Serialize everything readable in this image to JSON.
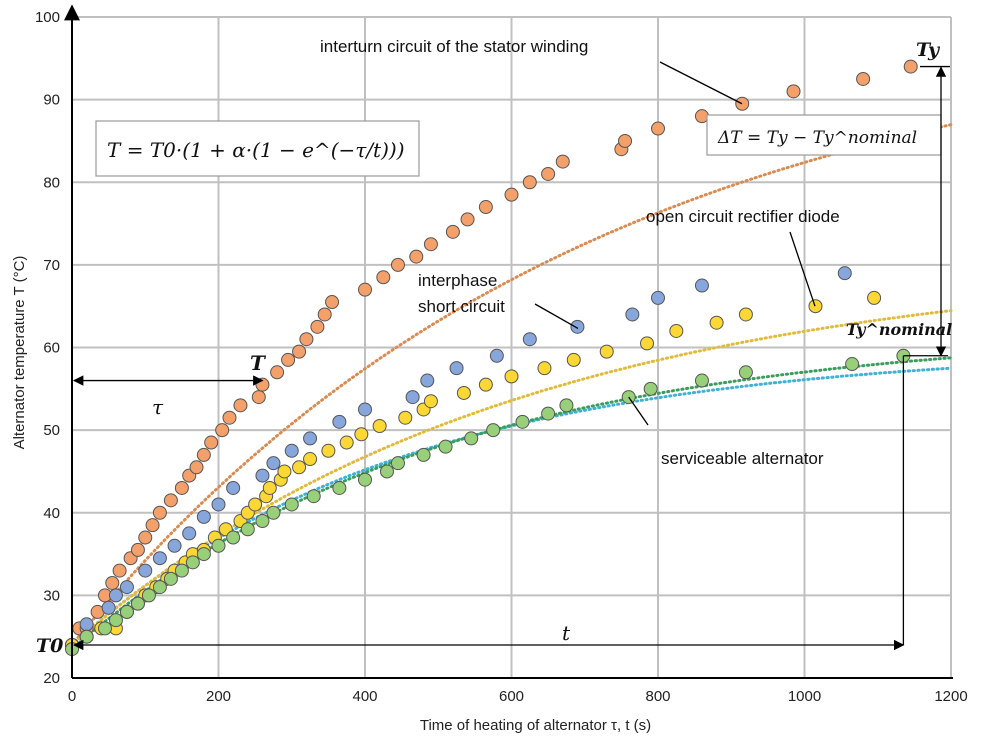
{
  "chart_data": {
    "type": "scatter",
    "title": "",
    "xlabel": "Time of heating of alternator τ, t (s)",
    "ylabel": "Alternator temperature T (°C)",
    "xlim": [
      0,
      1200
    ],
    "ylim": [
      20,
      100
    ],
    "x_ticks": [
      "0",
      "200",
      "400",
      "600",
      "800",
      "1000",
      "1200"
    ],
    "y_ticks": [
      "20",
      "30",
      "40",
      "50",
      "60",
      "70",
      "80",
      "90",
      "100"
    ],
    "grid": true,
    "legend": "none",
    "colors": {
      "orange": "#f4a06b",
      "blue": "#87a6dc",
      "yellow": "#fdd835",
      "green": "#98d07a",
      "orange_line": "#d98b52",
      "blue_line": "#3fb0d8",
      "yellow_line": "#e0bb3a",
      "green_line": "#3a9d5d",
      "grid": "#c0c0c0"
    },
    "series": [
      {
        "color_key": "orange",
        "points": [
          [
            0,
            24
          ],
          [
            10,
            26
          ],
          [
            20,
            26
          ],
          [
            35,
            28
          ],
          [
            45,
            30
          ],
          [
            55,
            31.5
          ],
          [
            65,
            33
          ],
          [
            80,
            34.5
          ],
          [
            90,
            35.5
          ],
          [
            100,
            37
          ],
          [
            110,
            38.5
          ],
          [
            120,
            40
          ],
          [
            135,
            41.5
          ],
          [
            150,
            43
          ],
          [
            160,
            44.5
          ],
          [
            170,
            45.5
          ],
          [
            180,
            47
          ],
          [
            190,
            48.5
          ],
          [
            205,
            50
          ],
          [
            215,
            51.5
          ],
          [
            230,
            53
          ],
          [
            255,
            54
          ],
          [
            260,
            55.5
          ],
          [
            280,
            57
          ],
          [
            295,
            58.5
          ],
          [
            310,
            59.5
          ],
          [
            320,
            61
          ],
          [
            335,
            62.5
          ],
          [
            345,
            64
          ],
          [
            355,
            65.5
          ],
          [
            400,
            67
          ],
          [
            425,
            68.5
          ],
          [
            445,
            70
          ],
          [
            470,
            71
          ],
          [
            490,
            72.5
          ],
          [
            520,
            74
          ],
          [
            540,
            75.5
          ],
          [
            565,
            77
          ],
          [
            600,
            78.5
          ],
          [
            625,
            80
          ],
          [
            650,
            81
          ],
          [
            670,
            82.5
          ],
          [
            750,
            84
          ],
          [
            755,
            85
          ],
          [
            800,
            86.5
          ],
          [
            860,
            88
          ],
          [
            915,
            89.5
          ],
          [
            985,
            91
          ],
          [
            1080,
            92.5
          ],
          [
            1145,
            94
          ]
        ],
        "fit": {
          "T0": 24,
          "alpha": 3.2,
          "t": 700
        }
      },
      {
        "color_key": "blue",
        "points": [
          [
            0,
            24
          ],
          [
            20,
            26.5
          ],
          [
            50,
            28.5
          ],
          [
            60,
            30
          ],
          [
            75,
            31
          ],
          [
            100,
            33
          ],
          [
            120,
            34.5
          ],
          [
            140,
            36
          ],
          [
            160,
            37.5
          ],
          [
            180,
            39.5
          ],
          [
            200,
            41
          ],
          [
            220,
            43
          ],
          [
            260,
            44.5
          ],
          [
            275,
            46
          ],
          [
            300,
            47.5
          ],
          [
            325,
            49
          ],
          [
            365,
            51
          ],
          [
            400,
            52.5
          ],
          [
            465,
            54
          ],
          [
            485,
            56
          ],
          [
            525,
            57.5
          ],
          [
            580,
            59
          ],
          [
            625,
            61
          ],
          [
            690,
            62.5
          ],
          [
            765,
            64
          ],
          [
            800,
            66
          ],
          [
            860,
            67.5
          ],
          [
            1055,
            69
          ]
        ],
        "fit": {
          "T0": 24,
          "alpha": 1.5,
          "t": 450
        }
      },
      {
        "color_key": "yellow",
        "points": [
          [
            0,
            24
          ],
          [
            20,
            25
          ],
          [
            40,
            26
          ],
          [
            60,
            26
          ],
          [
            75,
            28
          ],
          [
            90,
            29
          ],
          [
            100,
            30
          ],
          [
            115,
            31
          ],
          [
            130,
            32
          ],
          [
            140,
            33
          ],
          [
            155,
            34
          ],
          [
            165,
            35
          ],
          [
            180,
            35.5
          ],
          [
            195,
            37
          ],
          [
            210,
            38
          ],
          [
            230,
            39
          ],
          [
            240,
            40
          ],
          [
            250,
            41
          ],
          [
            265,
            42
          ],
          [
            270,
            43
          ],
          [
            285,
            44
          ],
          [
            290,
            45
          ],
          [
            310,
            45.5
          ],
          [
            325,
            46.5
          ],
          [
            350,
            47.5
          ],
          [
            375,
            48.5
          ],
          [
            395,
            49.5
          ],
          [
            420,
            50.5
          ],
          [
            455,
            51.5
          ],
          [
            480,
            52.5
          ],
          [
            490,
            53.5
          ],
          [
            535,
            54.5
          ],
          [
            565,
            55.5
          ],
          [
            600,
            56.5
          ],
          [
            645,
            57.5
          ],
          [
            685,
            58.5
          ],
          [
            730,
            59.5
          ],
          [
            785,
            60.5
          ],
          [
            825,
            62
          ],
          [
            880,
            63
          ],
          [
            920,
            64
          ],
          [
            1015,
            65
          ],
          [
            1095,
            66
          ]
        ],
        "fit": {
          "T0": 24,
          "alpha": 1.95,
          "t": 600
        }
      },
      {
        "color_key": "green",
        "points": [
          [
            0,
            23.5
          ],
          [
            20,
            25
          ],
          [
            45,
            26
          ],
          [
            60,
            27
          ],
          [
            75,
            28
          ],
          [
            90,
            29
          ],
          [
            105,
            30
          ],
          [
            120,
            31
          ],
          [
            135,
            32
          ],
          [
            150,
            33
          ],
          [
            165,
            34
          ],
          [
            180,
            35
          ],
          [
            200,
            36
          ],
          [
            220,
            37
          ],
          [
            240,
            38
          ],
          [
            260,
            39
          ],
          [
            275,
            40
          ],
          [
            300,
            41
          ],
          [
            330,
            42
          ],
          [
            365,
            43
          ],
          [
            400,
            44
          ],
          [
            430,
            45
          ],
          [
            445,
            46
          ],
          [
            480,
            47
          ],
          [
            510,
            48
          ],
          [
            545,
            49
          ],
          [
            575,
            50
          ],
          [
            615,
            51
          ],
          [
            650,
            52
          ],
          [
            675,
            53
          ],
          [
            760,
            54
          ],
          [
            790,
            55
          ],
          [
            860,
            56
          ],
          [
            920,
            57
          ],
          [
            1065,
            58
          ],
          [
            1135,
            59
          ]
        ],
        "fit": {
          "T0": 23.5,
          "alpha": 1.65,
          "t": 500
        }
      }
    ],
    "annotations": {
      "stator": "interturn circuit of the stator winding",
      "rectifier": "open circuit rectifier diode",
      "interphase_line1": "interphase",
      "interphase_line2": "short circuit",
      "serviceable": "serviceable alternator",
      "formula": "T = T0·(1 + α·(1 − e^(−τ/t)))",
      "delta": "ΔT = Ty − Ty^nominal",
      "T_label": "T",
      "T0_label": "T0",
      "Ty_label": "Ty",
      "Tnom_label": "Ty^nominal",
      "tau_label": "τ",
      "t_label": "t"
    }
  }
}
